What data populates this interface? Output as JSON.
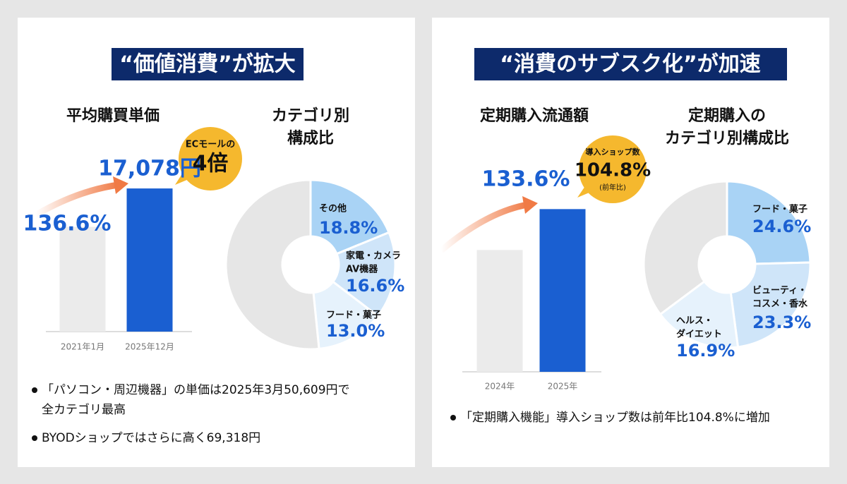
{
  "panels": [
    {
      "heading": "“価値消費”が拡大",
      "bullets": [
        [
          "「パソコン・周辺機器」の単価は2025年3月50,609円で",
          "全カテゴリ最高"
        ],
        [
          "BYODショップではさらに高く69,318円"
        ]
      ]
    },
    {
      "heading": "“消費のサブスク化”が加速",
      "bullets": [
        [
          "「定期購入機能」導入ショップ数は前年比104.8%に増加"
        ]
      ]
    }
  ],
  "chart_data": [
    {
      "type": "bar",
      "title": [
        "平均購買単価"
      ],
      "categories": [
        "2021年1月",
        "2025年12月"
      ],
      "values": [
        12502,
        17078
      ],
      "value_labels": [
        null,
        "17,078円"
      ],
      "colors": [
        "#ebebeb",
        "#1a5fd1"
      ],
      "ylim": [
        0,
        25000
      ],
      "annotation": "136.6%",
      "callout": [
        "ECモールの",
        "4倍"
      ]
    },
    {
      "type": "donut",
      "title": [
        "カテゴリ別",
        "構成比"
      ],
      "categories": [
        [
          "その他"
        ],
        [
          "家電・カメラ",
          "AV機器"
        ],
        [
          "フード・菓子"
        ],
        null
      ],
      "values": [
        18.8,
        16.6,
        13.0,
        51.6
      ],
      "value_labels": [
        "18.8%",
        "16.6%",
        "13.0%",
        null
      ],
      "colors": [
        "#a9d3f5",
        "#cfe5f9",
        "#e6f2fc",
        "#e6e6e6"
      ]
    },
    {
      "type": "bar",
      "title": [
        "定期購入流通額"
      ],
      "categories": [
        "2024年",
        "2025年"
      ],
      "values": [
        100,
        133.6
      ],
      "value_labels": [
        null,
        null
      ],
      "colors": [
        "#ebebeb",
        "#1a5fd1"
      ],
      "ylim": [
        0,
        190
      ],
      "annotation": "133.6%",
      "callout": [
        "導入ショップ数",
        "104.8%",
        "(前年比)"
      ]
    },
    {
      "type": "donut",
      "title": [
        "定期購入の",
        "カテゴリ別構成比"
      ],
      "categories": [
        [
          "フード・菓子"
        ],
        [
          "ビューティ・",
          "コスメ・香水"
        ],
        [
          "ヘルス・",
          "ダイエット"
        ],
        null
      ],
      "values": [
        24.6,
        23.3,
        16.9,
        35.2
      ],
      "value_labels": [
        "24.6%",
        "23.3%",
        "16.9%",
        null
      ],
      "colors": [
        "#a9d3f5",
        "#cfe5f9",
        "#e6f2fc",
        "#e6e6e6"
      ]
    }
  ]
}
